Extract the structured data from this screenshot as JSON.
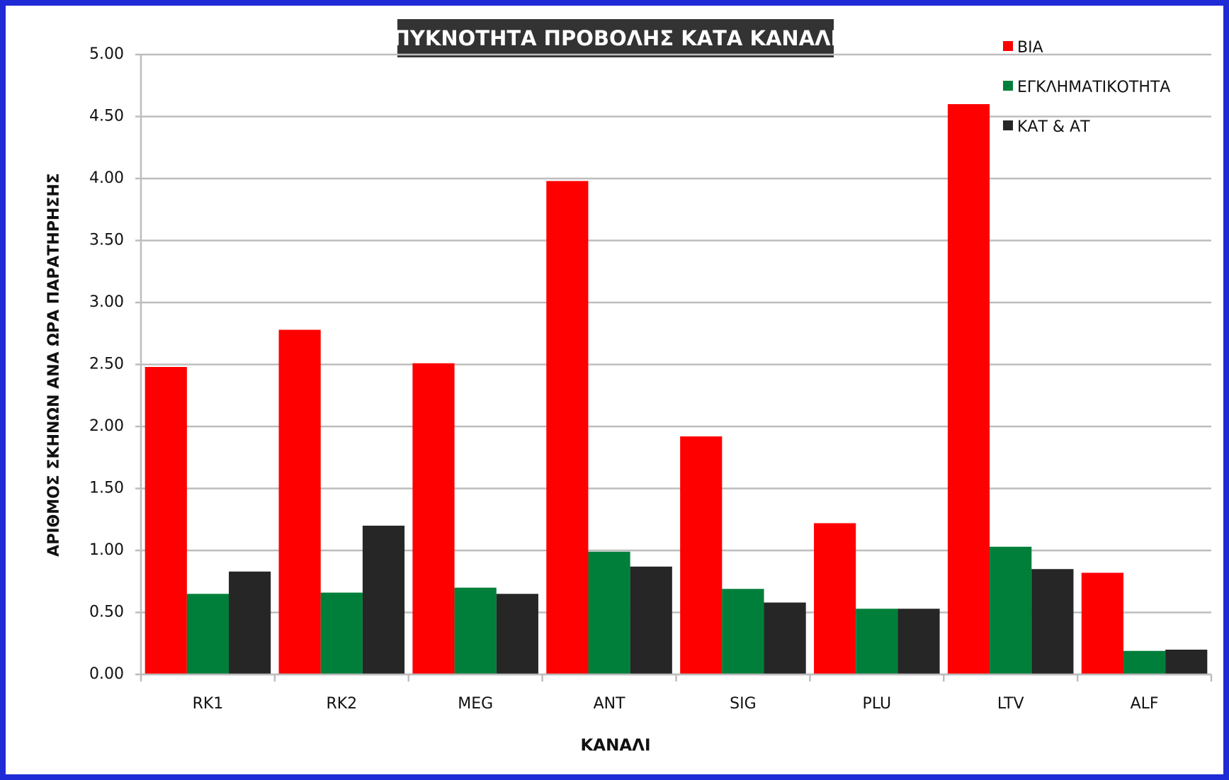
{
  "chart_data": {
    "type": "bar",
    "title": "ΠΥΚΝΟΤΗΤΑ ΠΡΟΒΟΛΗΣ ΚΑΤΑ ΚΑΝΑΛΙ",
    "xlabel": "ΚΑΝΑΛΙ",
    "ylabel": "ΑΡΙΘΜΟΣ ΣΚΗΝΩΝ ΑΝΑ ΩΡΑ ΠΑΡΑΤΗΡΗΣΗΣ",
    "categories": [
      "RK1",
      "RK2",
      "MEG",
      "ANT",
      "SIG",
      "PLU",
      "LTV",
      "ALF"
    ],
    "series": [
      {
        "name": "ΒΙΑ",
        "color": "#ff0000",
        "values": [
          2.48,
          2.78,
          2.51,
          3.98,
          1.92,
          1.22,
          4.6,
          0.82
        ]
      },
      {
        "name": "ΕΓΚΛΗΜΑΤΙΚΟΤΗΤΑ",
        "color": "#007f3a",
        "values": [
          0.65,
          0.66,
          0.7,
          0.99,
          0.69,
          0.53,
          1.03,
          0.19
        ]
      },
      {
        "name": "ΚΑΤ & ΑΤ",
        "color": "#262626",
        "values": [
          0.83,
          1.2,
          0.65,
          0.87,
          0.58,
          0.53,
          0.85,
          0.2
        ]
      }
    ],
    "ylim": [
      0,
      5
    ],
    "yticks": [
      {
        "value": 0,
        "label": "0.00"
      },
      {
        "value": 0.5,
        "label": "0.50"
      },
      {
        "value": 1,
        "label": "1.00"
      },
      {
        "value": 1.5,
        "label": "1.50"
      },
      {
        "value": 2,
        "label": "2.00"
      },
      {
        "value": 2.5,
        "label": "2.50"
      },
      {
        "value": 3,
        "label": "3.00"
      },
      {
        "value": 3.5,
        "label": "3.50"
      },
      {
        "value": 4,
        "label": "4.00"
      },
      {
        "value": 4.5,
        "label": "4.50"
      },
      {
        "value": 5,
        "label": "5.00"
      }
    ],
    "grid": true,
    "legend": "top-right"
  }
}
